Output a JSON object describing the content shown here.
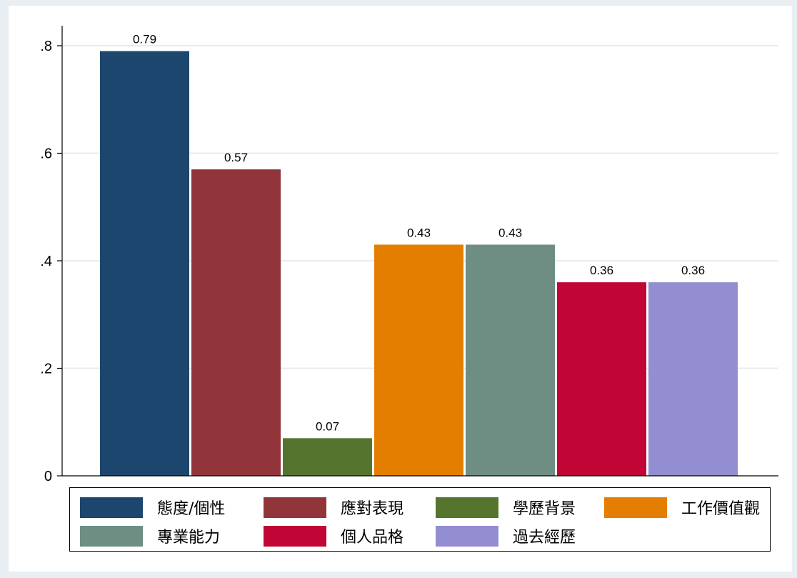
{
  "chart_data": {
    "type": "bar",
    "categories": [
      "態度/個性",
      "應對表現",
      "學歷背景",
      "工作價值觀",
      "專業能力",
      "個人品格",
      "過去經歷"
    ],
    "values": [
      0.79,
      0.57,
      0.07,
      0.43,
      0.43,
      0.36,
      0.36
    ],
    "data_labels": [
      "0.79",
      "0.57",
      "0.07",
      "0.43",
      "0.43",
      "0.36",
      "0.36"
    ],
    "colors": [
      "#1c466e",
      "#91353b",
      "#55752f",
      "#e37e00",
      "#6e8e84",
      "#c10534",
      "#938dd2"
    ],
    "ylim": [
      0,
      0.8
    ],
    "yticks": [
      0,
      0.2,
      0.4,
      0.6,
      0.8
    ],
    "ytick_labels": [
      "0",
      ".2",
      ".4",
      ".6",
      ".8"
    ],
    "grid": true,
    "legend_position": "bottom"
  }
}
